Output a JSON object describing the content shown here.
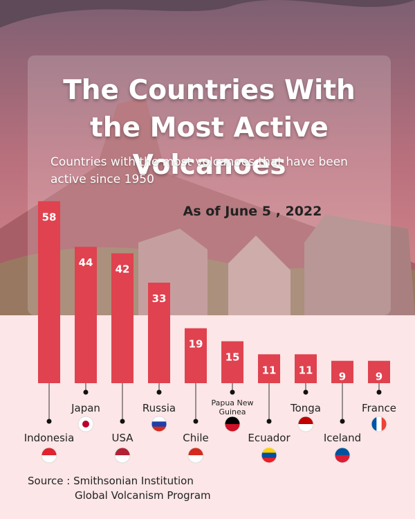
{
  "chart_data": {
    "type": "bar",
    "title": "The Countries With the Most Active Volcanoes",
    "subtitle": "Countries with the most volcanoes that have been active since 1950",
    "annotation": "As of June 5 , 2022",
    "categories": [
      "Indonesia",
      "Japan",
      "USA",
      "Russia",
      "Chile",
      "Papua New Guinea",
      "Ecuador",
      "Tonga",
      "Iceland",
      "France"
    ],
    "values": [
      58,
      44,
      42,
      33,
      19,
      15,
      11,
      11,
      9,
      9
    ],
    "color": "#e0424f",
    "source": [
      "Source : Smithsonian Institution",
      "Global Volcanism Program"
    ]
  }
}
